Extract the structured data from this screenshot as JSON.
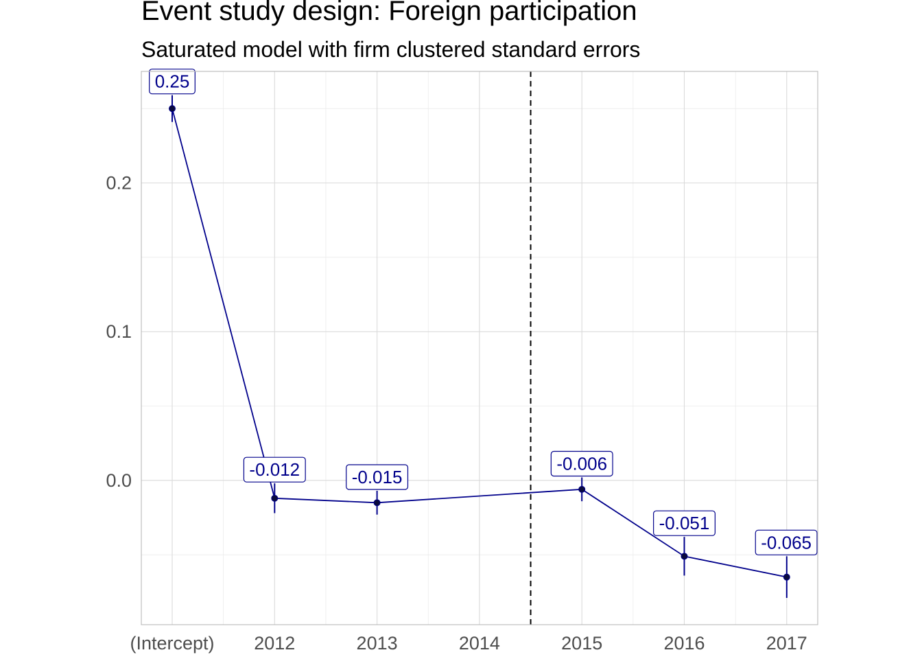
{
  "chart_data": {
    "type": "line",
    "title": "Event study design: Foreign participation",
    "subtitle": "Saturated model with firm clustered standard errors",
    "xlabel": "",
    "ylabel": "",
    "categories": [
      "(Intercept)",
      "2012",
      "2013",
      "2014",
      "2015",
      "2016",
      "2017"
    ],
    "points": [
      {
        "x": "(Intercept)",
        "y": 0.25,
        "lower": 0.241,
        "upper": 0.259,
        "label": "0.25"
      },
      {
        "x": "2012",
        "y": -0.012,
        "lower": -0.022,
        "upper": -0.002,
        "label": "-0.012"
      },
      {
        "x": "2013",
        "y": -0.015,
        "lower": -0.023,
        "upper": -0.007,
        "label": "-0.015"
      },
      {
        "x": "2015",
        "y": -0.006,
        "lower": -0.014,
        "upper": 0.002,
        "label": "-0.006"
      },
      {
        "x": "2016",
        "y": -0.051,
        "lower": -0.064,
        "upper": -0.038,
        "label": "-0.051"
      },
      {
        "x": "2017",
        "y": -0.065,
        "lower": -0.079,
        "upper": -0.051,
        "label": "-0.065"
      }
    ],
    "yticks": [
      {
        "value": 0.2,
        "label": "0.2"
      },
      {
        "value": 0.1,
        "label": "0.1"
      },
      {
        "value": 0.0,
        "label": "0.0"
      }
    ],
    "ylim": [
      -0.097,
      0.275
    ],
    "reference_line": {
      "x_between": [
        "2014",
        "2015"
      ],
      "style": "dashed"
    },
    "grid": true,
    "colors": {
      "line": "#00008b",
      "point": "#0a0a3c",
      "label": "#00008b",
      "grid": "#d9d9d9",
      "axis_text": "#4d4d4d"
    }
  }
}
